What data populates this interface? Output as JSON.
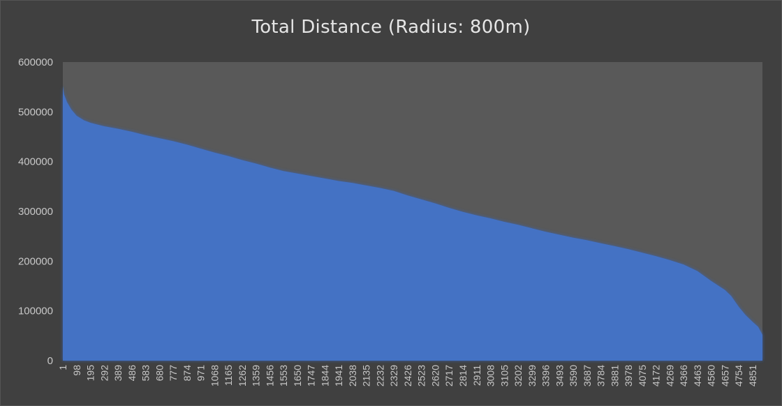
{
  "chart_data": {
    "type": "area",
    "title": "Total Distance (Radius: 800m)",
    "xlabel": "",
    "ylabel": "",
    "ylim": [
      0,
      600000
    ],
    "yticks": [
      0,
      100000,
      200000,
      300000,
      400000,
      500000,
      600000
    ],
    "xlim": [
      1,
      4920
    ],
    "xticks": [
      1,
      98,
      195,
      292,
      389,
      486,
      583,
      680,
      777,
      874,
      971,
      1068,
      1165,
      1262,
      1359,
      1456,
      1553,
      1650,
      1747,
      1844,
      1941,
      2038,
      2135,
      2232,
      2329,
      2426,
      2523,
      2620,
      2717,
      2814,
      2911,
      3008,
      3105,
      3202,
      3299,
      3396,
      3493,
      3590,
      3687,
      3784,
      3881,
      3978,
      4075,
      4172,
      4269,
      4366,
      4463,
      4560,
      4657,
      4754,
      4851
    ],
    "grid": false,
    "legend": "none",
    "colors": {
      "area": "#4472c4",
      "plot_bg": "#595959",
      "chart_bg": "#404040",
      "text": "#c8c8c8",
      "title": "#e6e6e6"
    },
    "series": [
      {
        "x": [
          1,
          10,
          30,
          60,
          98,
          150,
          195,
          250,
          292,
          389,
          486,
          583,
          680,
          777,
          874,
          971,
          1068,
          1165,
          1262,
          1359,
          1456,
          1553,
          1650,
          1747,
          1844,
          1941,
          2038,
          2135,
          2232,
          2329,
          2426,
          2523,
          2620,
          2717,
          2814,
          2911,
          3008,
          3105,
          3202,
          3299,
          3396,
          3493,
          3590,
          3687,
          3784,
          3881,
          3978,
          4075,
          4172,
          4269,
          4366,
          4463,
          4560,
          4657,
          4700,
          4754,
          4800,
          4851,
          4890,
          4920
        ],
        "values": [
          552000,
          535000,
          520000,
          505000,
          492000,
          483000,
          478000,
          474000,
          471000,
          466000,
          460000,
          453000,
          447000,
          441000,
          434000,
          426000,
          418000,
          411000,
          403000,
          396000,
          388000,
          381000,
          376000,
          371000,
          366000,
          361000,
          357000,
          352000,
          347000,
          341000,
          332000,
          324000,
          316000,
          307000,
          299000,
          292000,
          286000,
          279000,
          273000,
          266000,
          259000,
          253000,
          247000,
          242000,
          236000,
          230000,
          224000,
          217000,
          210000,
          202000,
          193000,
          180000,
          160000,
          142000,
          130000,
          108000,
          92000,
          78000,
          68000,
          52000
        ]
      }
    ]
  }
}
